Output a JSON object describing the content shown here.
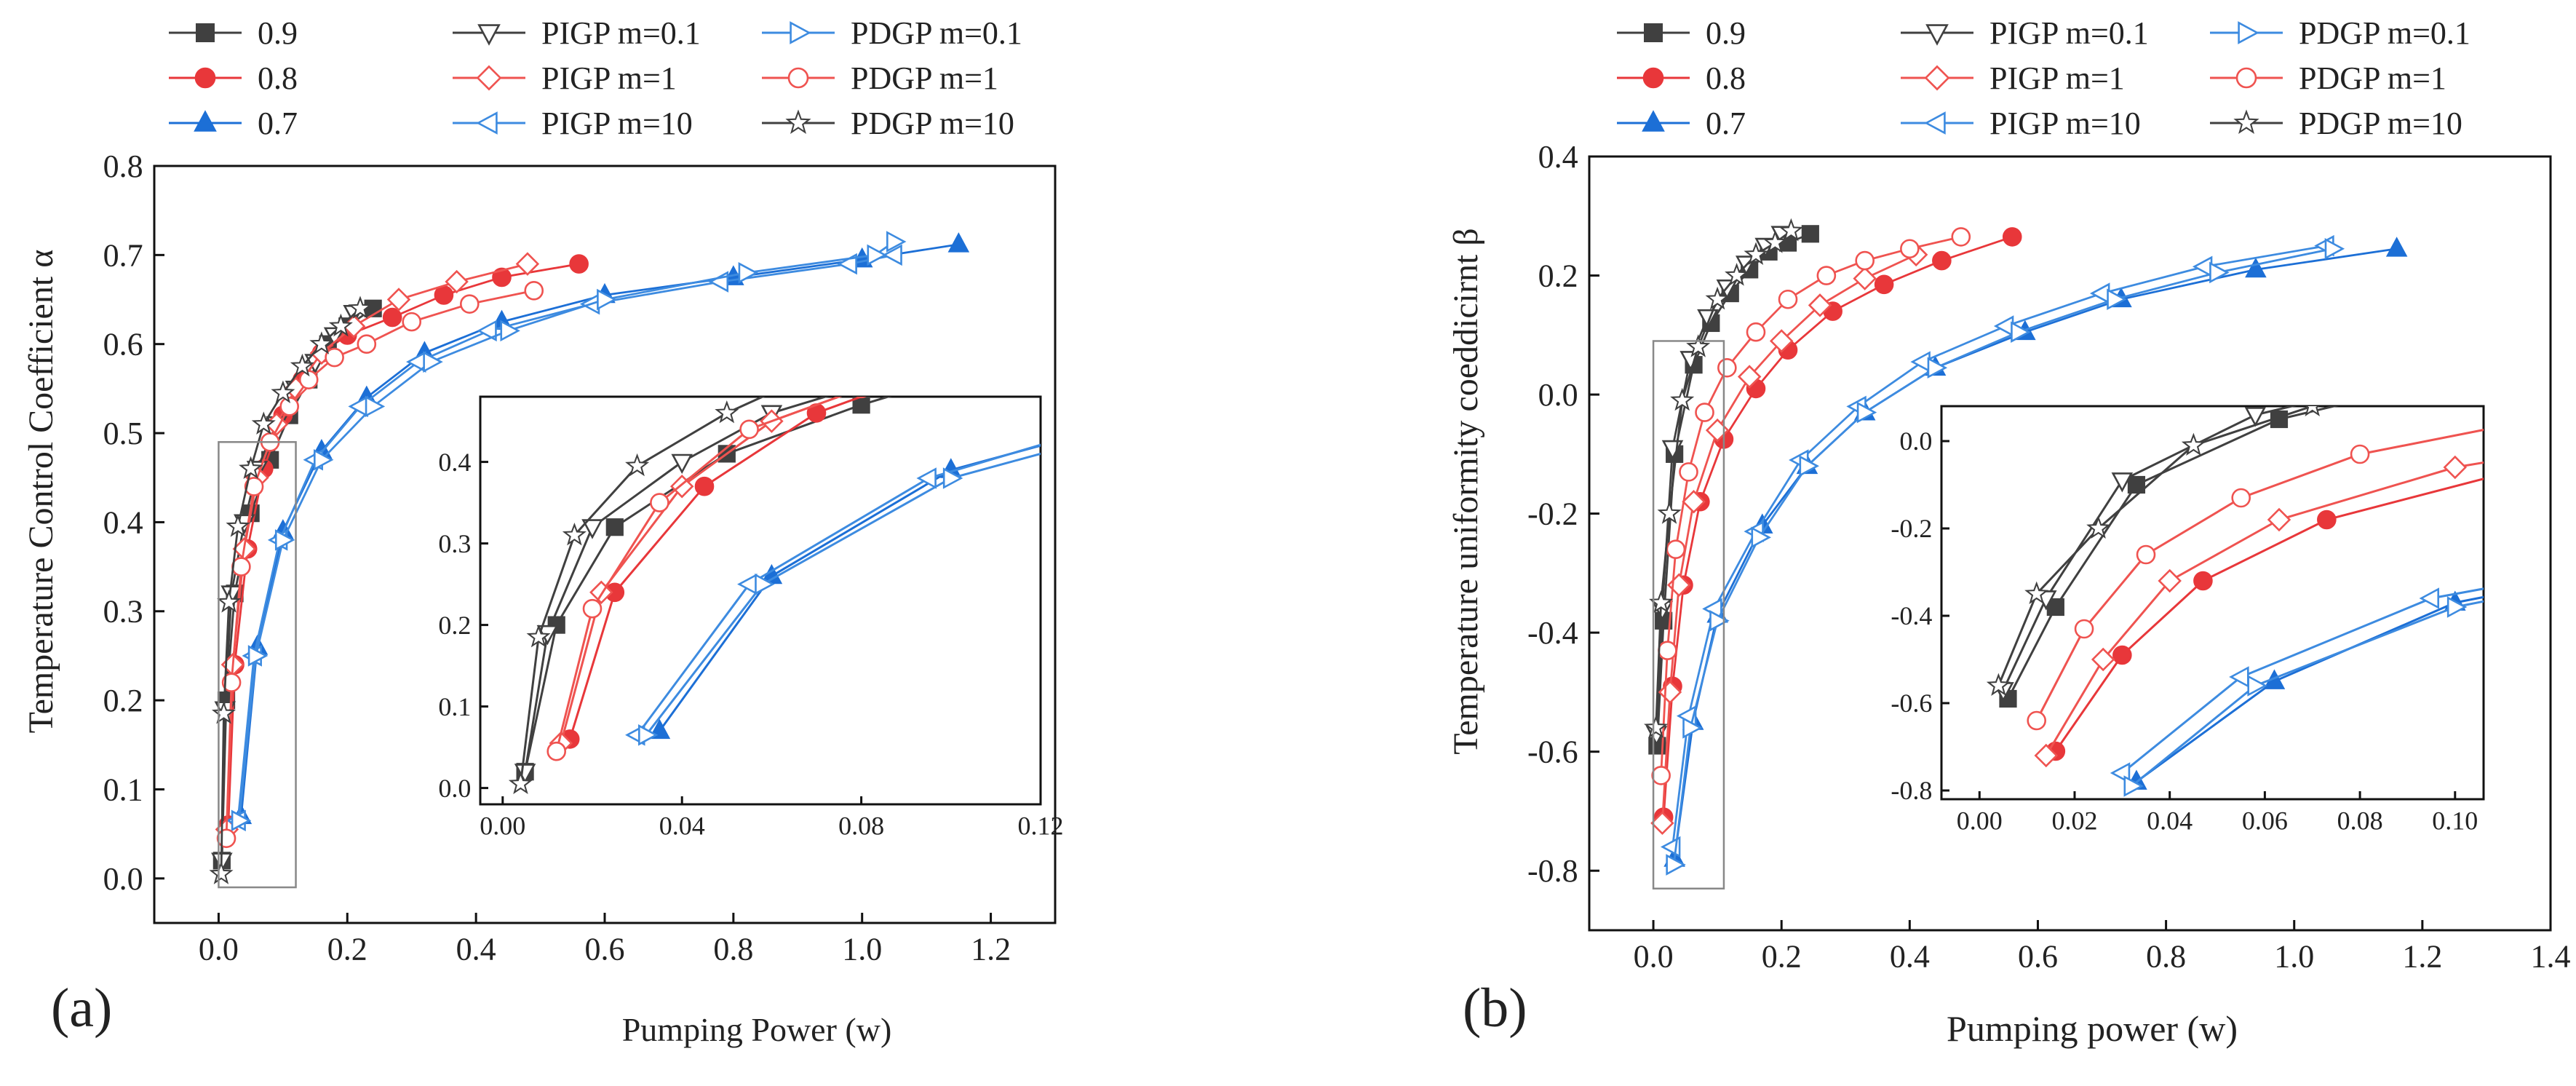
{
  "styles": {
    "0.9": {
      "color": "#404040",
      "marker": "square",
      "fill": true
    },
    "0.8": {
      "color": "#e8373a",
      "marker": "circle",
      "fill": true
    },
    "0.7": {
      "color": "#1c6fd6",
      "marker": "triangle-up",
      "fill": true
    },
    "PIGP m=0.1": {
      "color": "#404040",
      "marker": "triangle-down",
      "fill": false
    },
    "PIGP m=1": {
      "color": "#ef5350",
      "marker": "diamond",
      "fill": false
    },
    "PIGP m=10": {
      "color": "#3d8be0",
      "marker": "triangle-left",
      "fill": false
    },
    "PDGP m=0.1": {
      "color": "#3d8be0",
      "marker": "triangle-right",
      "fill": false
    },
    "PDGP m=1": {
      "color": "#ef5350",
      "marker": "circle",
      "fill": false
    },
    "PDGP m=10": {
      "color": "#404040",
      "marker": "star",
      "fill": false
    }
  },
  "chart_data": [
    {
      "type": "line",
      "panel_label": "(a)",
      "xlabel": "Pumping Power (w)",
      "ylabel": "Temperature Control Coefficient α",
      "xlim": [
        -0.1,
        1.3
      ],
      "ylim": [
        -0.05,
        0.8
      ],
      "xticks": [
        0.0,
        0.2,
        0.4,
        0.6,
        0.8,
        1.0,
        1.2
      ],
      "yticks": [
        0.0,
        0.1,
        0.2,
        0.3,
        0.4,
        0.5,
        0.6,
        0.7,
        0.8
      ],
      "legend": [
        "0.9",
        "PIGP m=0.1",
        "PDGP m=0.1",
        "0.8",
        "PIGP m=1",
        "PDGP m=1",
        "0.7",
        "PIGP m=10",
        "PDGP m=10"
      ],
      "series": [
        {
          "name": "0.9",
          "x": [
            0.005,
            0.012,
            0.025,
            0.05,
            0.08,
            0.11,
            0.14,
            0.17,
            0.2,
            0.24
          ],
          "y": [
            0.02,
            0.2,
            0.32,
            0.41,
            0.47,
            0.52,
            0.56,
            0.6,
            0.62,
            0.64
          ]
        },
        {
          "name": "0.8",
          "x": [
            0.015,
            0.025,
            0.045,
            0.07,
            0.1,
            0.13,
            0.16,
            0.2,
            0.27,
            0.35,
            0.44,
            0.56
          ],
          "y": [
            0.06,
            0.24,
            0.37,
            0.46,
            0.52,
            0.56,
            0.59,
            0.61,
            0.63,
            0.655,
            0.675,
            0.69
          ]
        },
        {
          "name": "0.7",
          "x": [
            0.035,
            0.06,
            0.1,
            0.16,
            0.23,
            0.32,
            0.44,
            0.6,
            0.8,
            1.0,
            1.15
          ],
          "y": [
            0.07,
            0.26,
            0.39,
            0.48,
            0.54,
            0.59,
            0.625,
            0.655,
            0.675,
            0.695,
            0.712
          ]
        },
        {
          "name": "PIGP m=0.1",
          "x": [
            0.005,
            0.01,
            0.02,
            0.04,
            0.06,
            0.09,
            0.12,
            0.15,
            0.18,
            0.21
          ],
          "y": [
            0.02,
            0.19,
            0.32,
            0.4,
            0.46,
            0.51,
            0.55,
            0.58,
            0.61,
            0.635
          ]
        },
        {
          "name": "PIGP m=1",
          "x": [
            0.013,
            0.022,
            0.04,
            0.06,
            0.09,
            0.12,
            0.16,
            0.21,
            0.28,
            0.37,
            0.48
          ],
          "y": [
            0.055,
            0.24,
            0.37,
            0.45,
            0.51,
            0.55,
            0.59,
            0.62,
            0.65,
            0.67,
            0.69
          ]
        },
        {
          "name": "PIGP m=10",
          "x": [
            0.03,
            0.055,
            0.095,
            0.15,
            0.22,
            0.31,
            0.42,
            0.58,
            0.78,
            0.98,
            1.05
          ],
          "y": [
            0.065,
            0.25,
            0.38,
            0.47,
            0.53,
            0.58,
            0.615,
            0.645,
            0.67,
            0.69,
            0.7
          ]
        },
        {
          "name": "PDGP m=0.1",
          "x": [
            0.032,
            0.058,
            0.1,
            0.16,
            0.24,
            0.33,
            0.45,
            0.6,
            0.82,
            1.02,
            1.05
          ],
          "y": [
            0.065,
            0.25,
            0.38,
            0.47,
            0.53,
            0.58,
            0.615,
            0.65,
            0.68,
            0.7,
            0.715
          ]
        },
        {
          "name": "PDGP m=1",
          "x": [
            0.012,
            0.02,
            0.035,
            0.055,
            0.08,
            0.11,
            0.14,
            0.18,
            0.23,
            0.3,
            0.39,
            0.49
          ],
          "y": [
            0.045,
            0.22,
            0.35,
            0.44,
            0.49,
            0.53,
            0.56,
            0.585,
            0.6,
            0.625,
            0.645,
            0.66
          ]
        },
        {
          "name": "PDGP m=10",
          "x": [
            0.004,
            0.008,
            0.016,
            0.03,
            0.05,
            0.07,
            0.1,
            0.13,
            0.16,
            0.19,
            0.22
          ],
          "y": [
            0.005,
            0.185,
            0.31,
            0.395,
            0.46,
            0.51,
            0.545,
            0.575,
            0.6,
            0.62,
            0.64
          ]
        }
      ],
      "inset": {
        "xlim": [
          -0.005,
          0.12
        ],
        "ylim": [
          -0.02,
          0.48
        ],
        "xticks": [
          0.0,
          0.04,
          0.08,
          0.12
        ],
        "yticks": [
          0.0,
          0.1,
          0.2,
          0.3,
          0.4
        ],
        "box": [
          0,
          0.12,
          -0.01,
          0.49
        ]
      }
    },
    {
      "type": "line",
      "panel_label": "(b)",
      "xlabel": "Pumping power (w)",
      "ylabel": "Temperature uniformity coeddicirnt β",
      "xlim": [
        -0.1,
        1.4
      ],
      "ylim": [
        -0.9,
        0.4
      ],
      "xticks": [
        0.0,
        0.2,
        0.4,
        0.6,
        0.8,
        1.0,
        1.2,
        1.4
      ],
      "yticks": [
        -0.8,
        -0.6,
        -0.4,
        -0.2,
        0.0,
        0.2,
        0.4
      ],
      "legend": [
        "0.9",
        "PIGP m=0.1",
        "PDGP m=0.1",
        "0.8",
        "PIGP m=1",
        "PDGP m=1",
        "0.7",
        "PIGP m=10",
        "PDGP m=10"
      ],
      "series": [
        {
          "name": "0.9",
          "x": [
            0.006,
            0.016,
            0.033,
            0.063,
            0.09,
            0.12,
            0.15,
            0.18,
            0.21,
            0.245
          ],
          "y": [
            -0.59,
            -0.38,
            -0.1,
            0.05,
            0.12,
            0.17,
            0.21,
            0.24,
            0.255,
            0.27
          ]
        },
        {
          "name": "0.8",
          "x": [
            0.016,
            0.03,
            0.047,
            0.073,
            0.11,
            0.16,
            0.21,
            0.28,
            0.36,
            0.45,
            0.56
          ],
          "y": [
            -0.71,
            -0.49,
            -0.32,
            -0.18,
            -0.075,
            0.01,
            0.075,
            0.14,
            0.185,
            0.225,
            0.265
          ]
        },
        {
          "name": "0.7",
          "x": [
            0.033,
            0.062,
            0.1,
            0.17,
            0.24,
            0.33,
            0.44,
            0.58,
            0.73,
            0.94,
            1.16
          ],
          "y": [
            -0.78,
            -0.55,
            -0.37,
            -0.22,
            -0.12,
            -0.03,
            0.045,
            0.105,
            0.16,
            0.21,
            0.245
          ]
        },
        {
          "name": "PIGP m=0.1",
          "x": [
            0.005,
            0.014,
            0.03,
            0.058,
            0.085,
            0.115,
            0.145,
            0.175,
            0.2
          ],
          "y": [
            -0.57,
            -0.36,
            -0.09,
            0.06,
            0.13,
            0.18,
            0.22,
            0.25,
            0.27
          ]
        },
        {
          "name": "PIGP m=1",
          "x": [
            0.014,
            0.026,
            0.04,
            0.063,
            0.1,
            0.15,
            0.2,
            0.26,
            0.33,
            0.41
          ],
          "y": [
            -0.72,
            -0.5,
            -0.32,
            -0.18,
            -0.06,
            0.03,
            0.09,
            0.15,
            0.195,
            0.235
          ]
        },
        {
          "name": "PIGP m=10",
          "x": [
            0.03,
            0.055,
            0.095,
            0.16,
            0.23,
            0.32,
            0.42,
            0.55,
            0.7,
            0.86,
            1.05
          ],
          "y": [
            -0.76,
            -0.54,
            -0.36,
            -0.23,
            -0.11,
            -0.02,
            0.055,
            0.115,
            0.17,
            0.215,
            0.25
          ]
        },
        {
          "name": "PDGP m=0.1",
          "x": [
            0.032,
            0.058,
            0.1,
            0.165,
            0.24,
            0.33,
            0.44,
            0.57,
            0.72,
            0.88,
            1.06
          ],
          "y": [
            -0.79,
            -0.56,
            -0.38,
            -0.24,
            -0.12,
            -0.03,
            0.045,
            0.105,
            0.16,
            0.205,
            0.245
          ]
        },
        {
          "name": "PDGP m=1",
          "x": [
            0.012,
            0.022,
            0.035,
            0.055,
            0.08,
            0.115,
            0.16,
            0.21,
            0.27,
            0.33,
            0.4,
            0.48
          ],
          "y": [
            -0.64,
            -0.43,
            -0.26,
            -0.13,
            -0.03,
            0.045,
            0.105,
            0.16,
            0.2,
            0.225,
            0.245,
            0.265
          ]
        },
        {
          "name": "PDGP m=10",
          "x": [
            0.004,
            0.012,
            0.025,
            0.045,
            0.07,
            0.1,
            0.13,
            0.16,
            0.19,
            0.215
          ],
          "y": [
            -0.56,
            -0.35,
            -0.2,
            -0.01,
            0.08,
            0.16,
            0.2,
            0.235,
            0.255,
            0.275
          ]
        }
      ],
      "inset": {
        "xlim": [
          -0.008,
          0.106
        ],
        "ylim": [
          -0.82,
          0.08
        ],
        "xticks": [
          0.0,
          0.02,
          0.04,
          0.06,
          0.08,
          0.1
        ],
        "yticks": [
          -0.8,
          -0.6,
          -0.4,
          -0.2,
          0.0
        ],
        "box": [
          0,
          0.11,
          -0.83,
          0.09
        ]
      }
    }
  ]
}
